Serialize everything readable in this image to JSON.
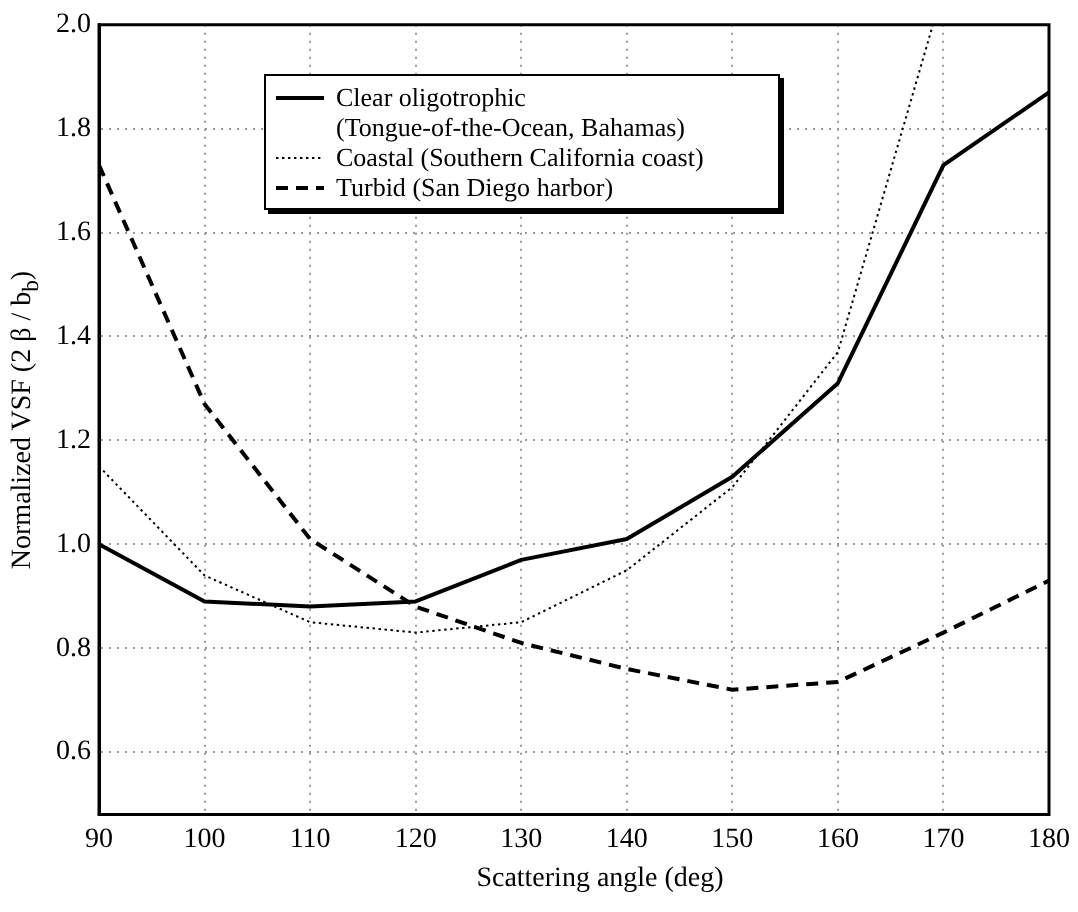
{
  "chart_data": {
    "type": "line",
    "xlabel": "Scattering angle (deg)",
    "ylabel": "Normalized VSF (2 β / b$_{b}$)",
    "x": [
      90,
      100,
      110,
      120,
      130,
      140,
      150,
      160,
      170,
      180
    ],
    "series": [
      {
        "name": "Clear oligotrophic (Tongue-of-the-Ocean, Bahamas)",
        "color": "#000000",
        "line_style": "solid",
        "values": [
          1.0,
          0.89,
          0.88,
          0.89,
          0.97,
          1.01,
          1.13,
          1.31,
          1.73,
          1.87
        ]
      },
      {
        "name": "Coastal (Southern California coast)",
        "color": "#000000",
        "line_style": "dotted",
        "x": [
          90,
          100,
          110,
          120,
          130,
          140,
          150,
          160,
          169
        ],
        "values": [
          1.15,
          0.94,
          0.85,
          0.83,
          0.85,
          0.95,
          1.11,
          1.37,
          2.0
        ]
      },
      {
        "name": "Turbid (San Diego harbor)",
        "color": "#000000",
        "line_style": "dashed",
        "values": [
          1.73,
          1.27,
          1.01,
          0.88,
          0.81,
          0.76,
          0.72,
          0.735,
          0.83,
          0.93
        ]
      }
    ],
    "xlim": [
      90,
      180
    ],
    "xticks": [
      90,
      100,
      110,
      120,
      130,
      140,
      150,
      160,
      170,
      180
    ],
    "ylim": [
      0.48,
      2.0
    ],
    "yticks": [
      0.6,
      0.8,
      {
        "value": 1,
        "label": "1.0"
      },
      1.2,
      1.4,
      1.6,
      1.8,
      {
        "value": 2,
        "label": "2.0"
      }
    ],
    "grid": true,
    "legend": "top left",
    "marker": "none"
  }
}
